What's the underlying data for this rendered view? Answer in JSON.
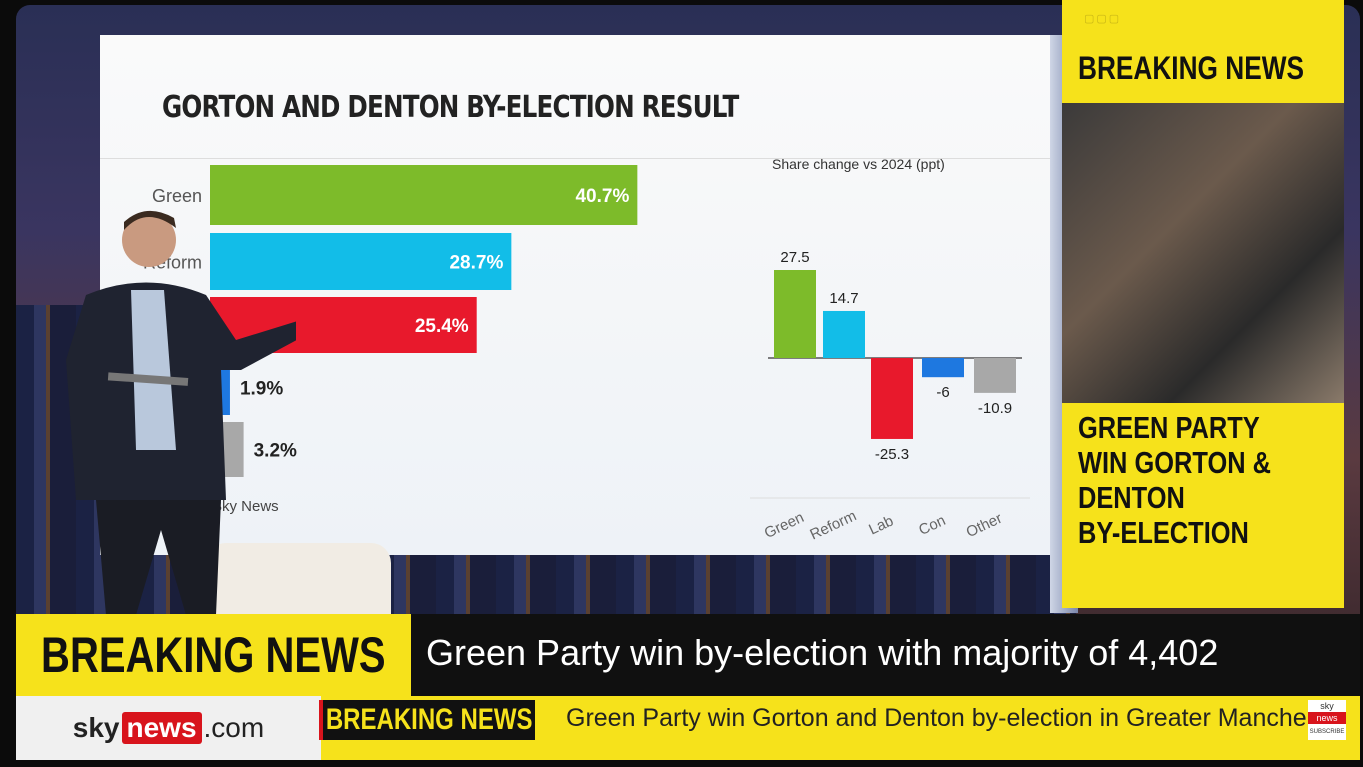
{
  "screen": {
    "title": "GORTON AND DENTON BY-ELECTION RESULT",
    "source": "Sky News"
  },
  "chart_data": [
    {
      "type": "bar",
      "orientation": "horizontal",
      "title": "GORTON AND DENTON BY-ELECTION RESULT",
      "categories": [
        "Green",
        "Reform",
        "Lab",
        "Con",
        "Other"
      ],
      "values": [
        40.7,
        28.7,
        25.4,
        1.9,
        3.2
      ],
      "value_labels": [
        "40.7%",
        "28.7%",
        "25.4%",
        "1.9%",
        "3.2%"
      ],
      "colors": [
        "#7dbb2a",
        "#12bde8",
        "#e8192c",
        "#1e78e0",
        "#a8a8a8"
      ],
      "visible_category_labels": [
        "Green",
        "Reform"
      ],
      "xlim": [
        0,
        45
      ]
    },
    {
      "type": "bar",
      "title": "Share change vs 2024 (ppt)",
      "categories": [
        "Green",
        "Reform",
        "Lab",
        "Con",
        "Other"
      ],
      "values": [
        27.5,
        14.7,
        -25.3,
        -6,
        -10.9
      ],
      "value_labels": [
        "27.5",
        "14.7",
        "-25.3",
        "-6",
        "-10.9"
      ],
      "colors": [
        "#7dbb2a",
        "#12bde8",
        "#e8192c",
        "#1e78e0",
        "#a8a8a8"
      ],
      "ylim": [
        -30,
        30
      ]
    }
  ],
  "side": {
    "header": "BREAKING NEWS",
    "text_lines": [
      "GREEN PARTY",
      "WIN GORTON &",
      "DENTON",
      "BY-ELECTION"
    ]
  },
  "lower_third": {
    "label": "BREAKING NEWS",
    "headline": "Green Party win by-election with majority of 4,402"
  },
  "ticker": {
    "brand_sky": "sky",
    "brand_news": "news",
    "brand_com": ".com",
    "label": "BREAKING NEWS",
    "text": "Green Party win Gorton and Denton by-election in Greater Manchester"
  },
  "subscribe": {
    "sky": "sky",
    "news": "news",
    "label": "SUBSCRIBE"
  }
}
